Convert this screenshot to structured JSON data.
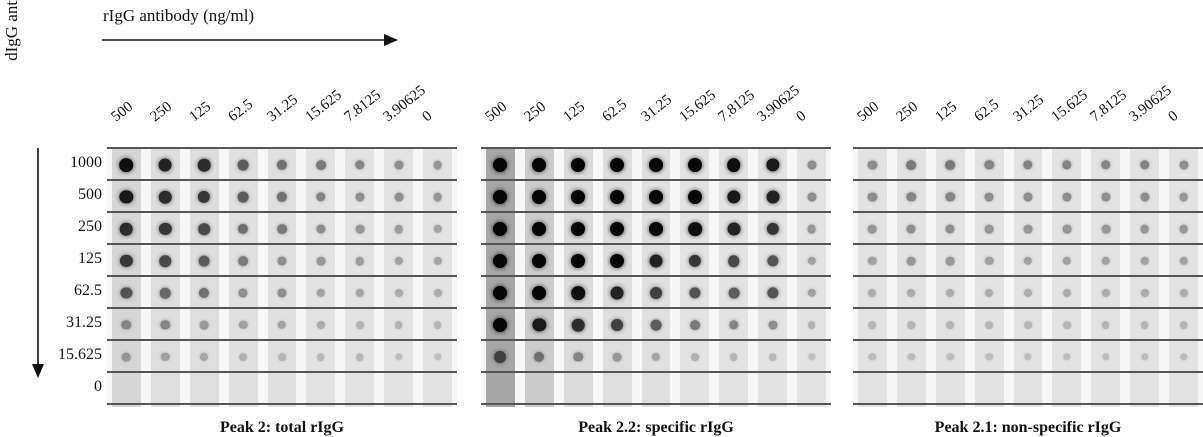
{
  "x_axis_title": "rIgG antibody (ng/ml)",
  "y_axis_title": "dIgG antigen  (ng)",
  "columns": [
    "500",
    "250",
    "125",
    "62.5",
    "31.25",
    "15.625",
    "7.8125",
    "3.90625",
    "0"
  ],
  "rows": [
    "1000",
    "500",
    "250",
    "125",
    "62.5",
    "31.25",
    "15.625",
    "0"
  ],
  "panels": [
    {
      "caption": "Peak 2: total rIgG",
      "strip_darkness": [
        0.16,
        0.13,
        0.13,
        0.12,
        0.12,
        0.11,
        0.11,
        0.11,
        0.11
      ],
      "intensity": [
        [
          0.95,
          0.85,
          0.8,
          0.55,
          0.45,
          0.4,
          0.35,
          0.3,
          0.25
        ],
        [
          0.9,
          0.8,
          0.75,
          0.55,
          0.45,
          0.35,
          0.3,
          0.28,
          0.25
        ],
        [
          0.8,
          0.75,
          0.65,
          0.45,
          0.4,
          0.3,
          0.25,
          0.22,
          0.2
        ],
        [
          0.75,
          0.65,
          0.55,
          0.4,
          0.3,
          0.25,
          0.22,
          0.2,
          0.18
        ],
        [
          0.6,
          0.5,
          0.45,
          0.3,
          0.3,
          0.2,
          0.18,
          0.15,
          0.15
        ],
        [
          0.35,
          0.35,
          0.25,
          0.2,
          0.2,
          0.15,
          0.12,
          0.12,
          0.1
        ],
        [
          0.25,
          0.2,
          0.18,
          0.12,
          0.1,
          0.08,
          0.08,
          0.06,
          0.05
        ],
        [
          0,
          0,
          0,
          0,
          0,
          0,
          0,
          0,
          0
        ]
      ]
    },
    {
      "caption": "Peak 2.2: specific rIgG",
      "strip_darkness": [
        0.35,
        0.2,
        0.14,
        0.13,
        0.12,
        0.11,
        0.11,
        0.11,
        0.11
      ],
      "intensity": [
        [
          1.0,
          1.0,
          1.0,
          1.0,
          1.0,
          1.0,
          0.95,
          0.9,
          0.3
        ],
        [
          1.0,
          1.0,
          1.0,
          1.0,
          1.0,
          1.0,
          0.9,
          0.85,
          0.3
        ],
        [
          1.0,
          1.0,
          1.0,
          1.0,
          1.0,
          0.95,
          0.85,
          0.75,
          0.25
        ],
        [
          1.0,
          1.0,
          1.0,
          1.0,
          0.85,
          0.75,
          0.65,
          0.6,
          0.2
        ],
        [
          1.0,
          1.0,
          0.95,
          0.85,
          0.7,
          0.6,
          0.55,
          0.6,
          0.2
        ],
        [
          1.0,
          0.9,
          0.8,
          0.7,
          0.55,
          0.4,
          0.35,
          0.3,
          0.12
        ],
        [
          0.7,
          0.45,
          0.35,
          0.25,
          0.18,
          0.12,
          0.1,
          0.08,
          0.05
        ],
        [
          0,
          0,
          0,
          0,
          0,
          0,
          0,
          0,
          0
        ]
      ]
    },
    {
      "caption": "Peak 2.1: non-specific rIgG",
      "strip_darkness": [
        0.11,
        0.11,
        0.11,
        0.11,
        0.11,
        0.11,
        0.11,
        0.11,
        0.11
      ],
      "intensity": [
        [
          0.3,
          0.4,
          0.4,
          0.35,
          0.35,
          0.35,
          0.35,
          0.35,
          0.3
        ],
        [
          0.3,
          0.35,
          0.35,
          0.3,
          0.3,
          0.3,
          0.3,
          0.3,
          0.25
        ],
        [
          0.25,
          0.3,
          0.3,
          0.25,
          0.25,
          0.25,
          0.25,
          0.25,
          0.25
        ],
        [
          0.2,
          0.25,
          0.25,
          0.2,
          0.2,
          0.2,
          0.2,
          0.2,
          0.2
        ],
        [
          0.15,
          0.15,
          0.15,
          0.15,
          0.15,
          0.15,
          0.15,
          0.15,
          0.15
        ],
        [
          0.1,
          0.1,
          0.1,
          0.1,
          0.1,
          0.1,
          0.1,
          0.1,
          0.1
        ],
        [
          0.06,
          0.06,
          0.06,
          0.06,
          0.06,
          0.06,
          0.06,
          0.06,
          0.06
        ],
        [
          0,
          0,
          0,
          0,
          0,
          0,
          0,
          0,
          0
        ]
      ]
    }
  ]
}
